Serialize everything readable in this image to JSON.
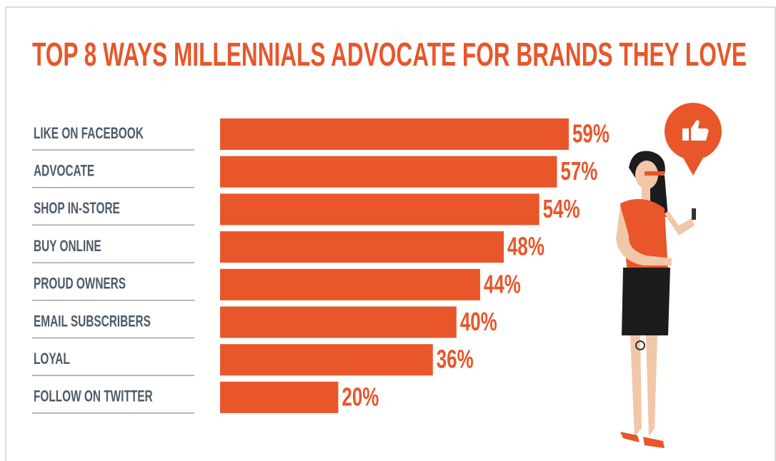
{
  "chart_data": {
    "type": "bar",
    "orientation": "horizontal",
    "title": "TOP 8 WAYS MILLENNIALS ADVOCATE FOR BRANDS THEY LOVE",
    "categories": [
      "LIKE ON FACEBOOK",
      "ADVOCATE",
      "SHOP IN-STORE",
      "BUY ONLINE",
      "PROUD OWNERS",
      "EMAIL SUBSCRIBERS",
      "LOYAL",
      "FOLLOW ON TWITTER"
    ],
    "values": [
      59,
      57,
      54,
      48,
      44,
      40,
      36,
      20
    ],
    "value_labels": [
      "59%",
      "57%",
      "54%",
      "48%",
      "44%",
      "40%",
      "36%",
      "20%"
    ],
    "color": "#e8562a"
  }
}
